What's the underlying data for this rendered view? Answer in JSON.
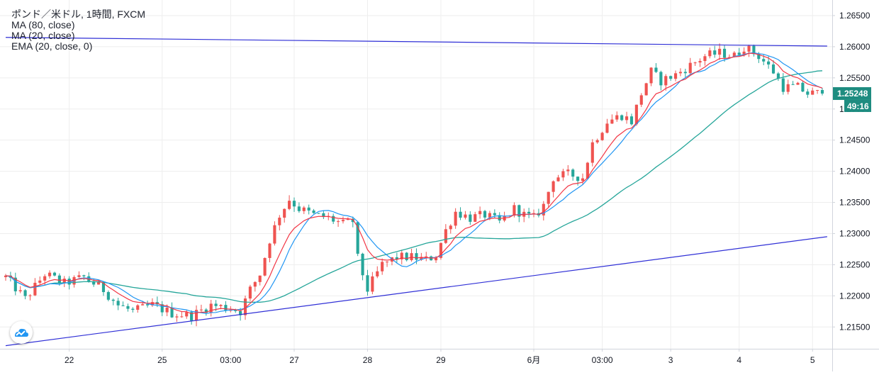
{
  "legend": {
    "title": "ポンド／米ドル, 1時間, FXCM",
    "lines": [
      "MA (80, close)",
      "MA (20, close)",
      "EMA (20, close, 0)"
    ]
  },
  "colors": {
    "up": "#ef5350",
    "down": "#26a69a",
    "ma80": "#26a69a",
    "ma20": "#2196f3",
    "ema20": "#f23645",
    "trendline": "#2f2fd6",
    "grid": "#eeeeee",
    "price_badge": "#1e8c80",
    "axis_border": "#d1d4dc"
  },
  "logo_icon": "tradingview-cloud-icon",
  "chart_data": {
    "type": "candlestick",
    "y_axis": {
      "ylim": [
        1.2115,
        1.2675
      ],
      "ticks": [
        1.215,
        1.22,
        1.225,
        1.23,
        1.235,
        1.24,
        1.245,
        1.25,
        1.255,
        1.26,
        1.265
      ],
      "tick_labels": [
        "1.21500",
        "1.22000",
        "1.22500",
        "1.23000",
        "1.23500",
        "1.24000",
        "1.24500",
        "1.25000",
        "1.25500",
        "1.26000",
        "1.26500"
      ]
    },
    "x_axis": {
      "range": [
        0,
        167
      ],
      "ticks": [
        {
          "x": 13,
          "label": "22"
        },
        {
          "x": 32,
          "label": "25"
        },
        {
          "x": 46,
          "label": "03:00"
        },
        {
          "x": 59,
          "label": "27"
        },
        {
          "x": 74,
          "label": "28"
        },
        {
          "x": 89,
          "label": "29"
        },
        {
          "x": 108,
          "label": "6月"
        },
        {
          "x": 122,
          "label": "03:00"
        },
        {
          "x": 136,
          "label": "3"
        },
        {
          "x": 150,
          "label": "4"
        },
        {
          "x": 165,
          "label": "5"
        }
      ]
    },
    "grid": true,
    "current_price": {
      "value": 1.25248,
      "label": "1.25248",
      "countdown": "49:16"
    },
    "trendlines": [
      {
        "name": "resistance",
        "from": [
          0,
          1.2615
        ],
        "to": [
          168,
          1.2601
        ]
      },
      {
        "name": "support",
        "from": [
          0,
          1.212
        ],
        "to": [
          168,
          1.2295
        ]
      }
    ],
    "price_path": [
      [
        0,
        1.223
      ],
      [
        4,
        1.2195
      ],
      [
        8,
        1.2235
      ],
      [
        12,
        1.222
      ],
      [
        16,
        1.223
      ],
      [
        20,
        1.221
      ],
      [
        23,
        1.2185
      ],
      [
        26,
        1.2175
      ],
      [
        30,
        1.2185
      ],
      [
        34,
        1.2172
      ],
      [
        38,
        1.2168
      ],
      [
        42,
        1.2185
      ],
      [
        46,
        1.218
      ],
      [
        48,
        1.2175
      ],
      [
        50,
        1.221
      ],
      [
        52,
        1.2235
      ],
      [
        54,
        1.229
      ],
      [
        56,
        1.233
      ],
      [
        58,
        1.2355
      ],
      [
        60,
        1.234
      ],
      [
        63,
        1.233
      ],
      [
        66,
        1.2325
      ],
      [
        69,
        1.2315
      ],
      [
        71,
        1.232
      ],
      [
        72,
        1.226
      ],
      [
        74,
        1.221
      ],
      [
        77,
        1.225
      ],
      [
        80,
        1.2262
      ],
      [
        83,
        1.2262
      ],
      [
        86,
        1.2258
      ],
      [
        88,
        1.2265
      ],
      [
        90,
        1.2305
      ],
      [
        92,
        1.2335
      ],
      [
        95,
        1.2325
      ],
      [
        98,
        1.233
      ],
      [
        101,
        1.2318
      ],
      [
        104,
        1.234
      ],
      [
        106,
        1.233
      ],
      [
        108,
        1.2325
      ],
      [
        110,
        1.2345
      ],
      [
        112,
        1.239
      ],
      [
        115,
        1.2395
      ],
      [
        118,
        1.239
      ],
      [
        120,
        1.2445
      ],
      [
        123,
        1.248
      ],
      [
        126,
        1.249
      ],
      [
        128,
        1.248
      ],
      [
        130,
        1.2525
      ],
      [
        132,
        1.256
      ],
      [
        134,
        1.2545
      ],
      [
        137,
        1.2555
      ],
      [
        140,
        1.257
      ],
      [
        143,
        1.2585
      ],
      [
        146,
        1.259
      ],
      [
        149,
        1.2585
      ],
      [
        151,
        1.26
      ],
      [
        154,
        1.2585
      ],
      [
        157,
        1.256
      ],
      [
        159,
        1.2535
      ],
      [
        162,
        1.2535
      ],
      [
        164,
        1.2525
      ],
      [
        165,
        1.2525
      ]
    ],
    "ma_periods": {
      "ema20": 8,
      "ma20": 10,
      "ma80": 38
    }
  }
}
